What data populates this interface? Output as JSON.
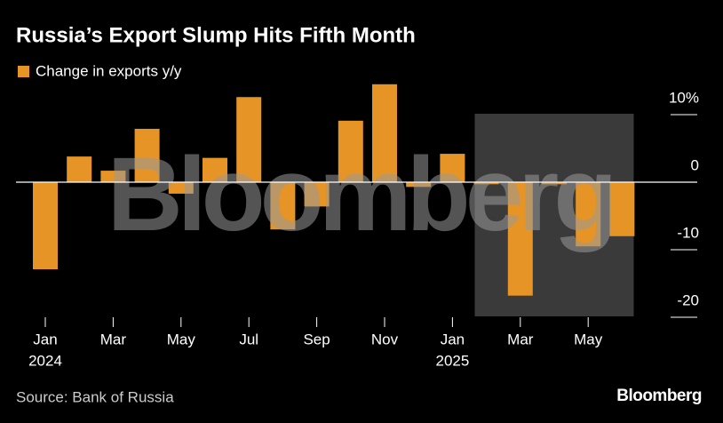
{
  "chart_data": {
    "type": "bar",
    "title": "Russia’s Export Slump Hits Fifth Month",
    "categories": [
      "Jan",
      null,
      "Mar",
      null,
      "May",
      null,
      "Jul",
      null,
      "Sep",
      null,
      "Nov",
      null,
      "Jan",
      null,
      "Mar",
      null,
      "May",
      null
    ],
    "years": [
      "2024",
      null,
      null,
      null,
      null,
      null,
      null,
      null,
      null,
      null,
      null,
      null,
      "2025",
      null,
      null,
      null,
      null,
      null
    ],
    "series": [
      {
        "name": "Change in exports y/y",
        "color": "#e59425",
        "values": [
          -12.9,
          3.8,
          1.7,
          7.9,
          -1.7,
          3.6,
          12.6,
          -7.0,
          -3.6,
          9.1,
          14.5,
          -0.7,
          4.2,
          -0.3,
          -16.8,
          -0.3,
          -9.5,
          -8.0
        ]
      }
    ],
    "ylim": [
      -20,
      15
    ],
    "yticks": [
      {
        "value": 10,
        "label": "10%"
      },
      0,
      -10,
      -20
    ],
    "source": "Source: Bank of Russia",
    "watermark": "Bloomberg",
    "logo": "Bloomberg"
  }
}
